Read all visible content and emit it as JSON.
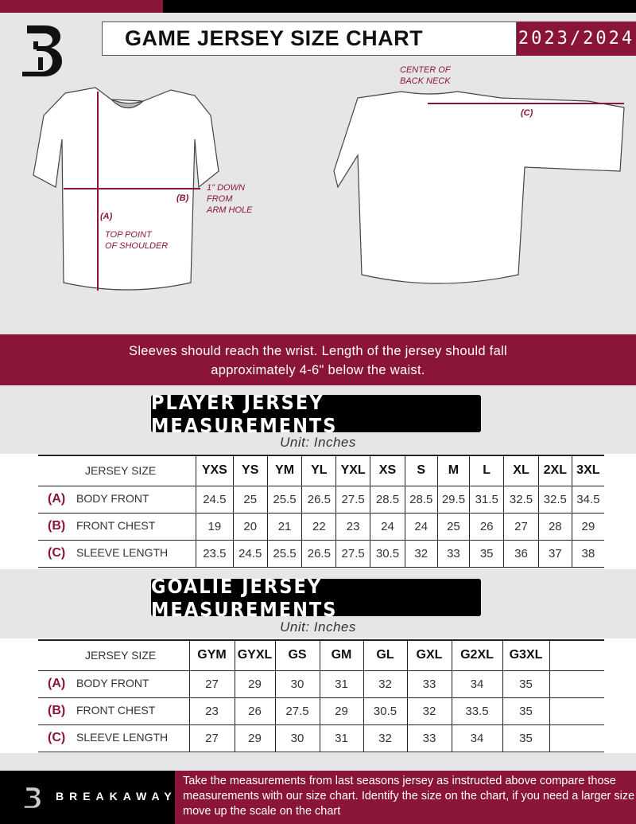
{
  "header": {
    "title": "GAME JERSEY SIZE CHART",
    "season": "2023/2024"
  },
  "diagram": {
    "back_neck_note": "CENTER OF\nBACK NECK",
    "label_a": "(A)",
    "label_b": "(B)",
    "label_c": "(C)",
    "chest_note": "1\" DOWN\nFROM\nARM HOLE",
    "shoulder_note": "TOP POINT\nOF SHOULDER"
  },
  "banner": {
    "line1": "Sleeves should reach the wrist. Length of the jersey should fall",
    "line2": "approximately 4-6\" below the waist."
  },
  "player": {
    "title": "PLAYER JERSEY MEASUREMENTS",
    "unit": "Unit: Inches",
    "size_header": "JERSEY SIZE",
    "sizes": [
      "YXS",
      "YS",
      "YM",
      "YL",
      "YXL",
      "XS",
      "S",
      "M",
      "L",
      "XL",
      "2XL",
      "3XL"
    ],
    "rows": [
      {
        "letter": "(A)",
        "label": "BODY FRONT",
        "values": [
          "24.5",
          "25",
          "25.5",
          "26.5",
          "27.5",
          "28.5",
          "28.5",
          "29.5",
          "31.5",
          "32.5",
          "32.5",
          "34.5"
        ]
      },
      {
        "letter": "(B)",
        "label": "FRONT CHEST",
        "values": [
          "19",
          "20",
          "21",
          "22",
          "23",
          "24",
          "24",
          "25",
          "26",
          "27",
          "28",
          "29"
        ]
      },
      {
        "letter": "(C)",
        "label": "SLEEVE LENGTH",
        "values": [
          "23.5",
          "24.5",
          "25.5",
          "26.5",
          "27.5",
          "30.5",
          "32",
          "33",
          "35",
          "36",
          "37",
          "38"
        ]
      }
    ]
  },
  "goalie": {
    "title": "GOALIE JERSEY MEASUREMENTS",
    "unit": "Unit: Inches",
    "size_header": "JERSEY SIZE",
    "sizes": [
      "GYM",
      "GYXL",
      "GS",
      "GM",
      "GL",
      "GXL",
      "G2XL",
      "G3XL",
      ""
    ],
    "rows": [
      {
        "letter": "(A)",
        "label": "BODY FRONT",
        "values": [
          "27",
          "29",
          "30",
          "31",
          "32",
          "33",
          "34",
          "35",
          ""
        ]
      },
      {
        "letter": "(B)",
        "label": "FRONT CHEST",
        "values": [
          "23",
          "26",
          "27.5",
          "29",
          "30.5",
          "32",
          "33.5",
          "35",
          ""
        ]
      },
      {
        "letter": "(C)",
        "label": "SLEEVE LENGTH",
        "values": [
          "27",
          "29",
          "30",
          "31",
          "32",
          "33",
          "34",
          "35",
          ""
        ]
      }
    ]
  },
  "footer": {
    "brand": "BREAKAWAY",
    "text": "Take the measurements from last seasons jersey as instructed above compare those measurements  with our size chart. Identify the size on the chart, if you need a larger size move up the scale on the chart"
  },
  "colors": {
    "accent": "#8a1538",
    "dark": "#000000",
    "background": "#e6e6e8"
  }
}
